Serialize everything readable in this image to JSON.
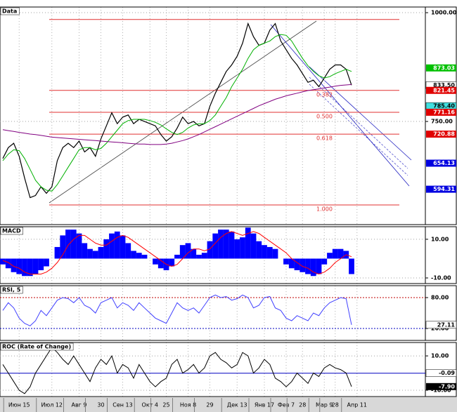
{
  "chart_data": [
    {
      "type": "line",
      "title": "Data",
      "ylim": [
        513,
        1013
      ],
      "yticks": [
        {
          "value": 1000,
          "label": "1000.00"
        },
        {
          "value": 750,
          "label": "750.00"
        }
      ],
      "series": [
        {
          "color": "#000000",
          "values": [
            665,
            690,
            700,
            670,
            620,
            575,
            580,
            600,
            585,
            600,
            660,
            690,
            700,
            690,
            705,
            680,
            690,
            670,
            710,
            740,
            770,
            745,
            760,
            765,
            745,
            755,
            750,
            745,
            740,
            720,
            705,
            715,
            735,
            760,
            745,
            750,
            740,
            745,
            785,
            815,
            840,
            865,
            880,
            900,
            930,
            975,
            945,
            925,
            930,
            960,
            975,
            935,
            915,
            895,
            880,
            860,
            840,
            845,
            830,
            850,
            870,
            880,
            880,
            870,
            833.5,
            null
          ]
        },
        {
          "color": "#00b000",
          "values": [
            660,
            675,
            685,
            683,
            665,
            640,
            615,
            600,
            592,
            590,
            605,
            625,
            645,
            665,
            685,
            690,
            690,
            685,
            688,
            700,
            715,
            730,
            745,
            752,
            755,
            755,
            755,
            752,
            748,
            742,
            733,
            725,
            720,
            725,
            735,
            742,
            745,
            745,
            752,
            765,
            785,
            805,
            830,
            850,
            870,
            895,
            915,
            925,
            930,
            935,
            945,
            950,
            948,
            935,
            915,
            895,
            878,
            865,
            855,
            850,
            853,
            860,
            865,
            870,
            865,
            null
          ]
        },
        {
          "color": "#800080",
          "values": [
            731,
            729,
            727,
            725,
            723,
            721,
            720,
            718,
            716,
            714,
            713,
            712,
            711,
            710,
            709,
            708,
            707,
            706,
            705,
            704,
            703,
            702,
            701,
            700,
            699,
            698,
            698,
            697,
            697,
            697,
            698,
            700,
            703,
            706,
            710,
            715,
            720,
            726,
            732,
            738,
            744,
            750,
            756,
            762,
            768,
            774,
            780,
            786,
            791,
            796,
            801,
            805,
            809,
            812,
            815,
            818,
            821,
            823,
            825,
            827,
            829,
            831,
            833,
            834,
            835,
            null
          ]
        }
      ],
      "fib_levels": [
        984.3,
        821.45,
        771.16,
        720.88,
        558.1
      ],
      "fib_labels": [
        null,
        "0.382",
        "0.500",
        "0.618",
        "1.000"
      ],
      "fib_color": "#e03030",
      "tags": [
        {
          "value": 873.03,
          "label": "873.03",
          "color": "#00c000"
        },
        {
          "value": 833.5,
          "label": "833.50",
          "color": "#ffffff"
        },
        {
          "value": 821.45,
          "label": "821.45",
          "color": "#e00000"
        },
        {
          "value": 785.4,
          "label": "785.40",
          "color": "#40e0e0"
        },
        {
          "value": 771.16,
          "label": "771.16",
          "color": "#e00000"
        },
        {
          "value": 720.88,
          "label": "720.88",
          "color": "#e00000"
        },
        {
          "value": 654.13,
          "label": "654.13",
          "color": "#0000e0"
        },
        {
          "value": 594.31,
          "label": "594.31",
          "color": "#0000e0"
        }
      ]
    },
    {
      "type": "bar",
      "title": "MACD",
      "ylim": [
        -12.9,
        16.5
      ],
      "yticks": [
        {
          "value": 10,
          "label": "10.00"
        },
        {
          "value": -10,
          "label": "-10.00"
        }
      ],
      "series": [
        {
          "type": "bar",
          "color": "#0000ff",
          "values": [
            -3,
            -5,
            -7,
            -8,
            -9,
            -9,
            -8,
            -6,
            -4,
            0,
            6,
            12,
            15,
            15,
            13,
            8,
            5,
            4,
            6,
            10,
            13,
            14,
            12,
            8,
            4,
            3,
            2,
            0,
            -3,
            -5,
            -6,
            -4,
            2,
            7,
            8,
            5,
            2,
            3,
            9,
            13,
            15,
            15,
            14,
            10,
            11,
            16,
            13,
            9,
            7,
            6,
            5,
            0,
            -3,
            -5,
            -6,
            -7,
            -8,
            -9,
            -8,
            -3,
            3,
            5,
            5,
            4,
            -8,
            null
          ]
        },
        {
          "type": "line",
          "color": "#ff0000",
          "values": [
            -1,
            -2,
            -4,
            -5,
            -7,
            -8,
            -8,
            -8,
            -7,
            -5,
            -2,
            2,
            7,
            10,
            12,
            12,
            10,
            8,
            7,
            7,
            9,
            11,
            12,
            11,
            9,
            7,
            5,
            3,
            1,
            -1,
            -3,
            -4,
            -3,
            0,
            3,
            5,
            5,
            4,
            5,
            8,
            11,
            13,
            14,
            13,
            12,
            13,
            14,
            13,
            11,
            9,
            7,
            5,
            3,
            0,
            -2,
            -4,
            -5,
            -7,
            -8,
            -7,
            -5,
            -2,
            0,
            2,
            1,
            null
          ]
        }
      ]
    },
    {
      "type": "line",
      "title": "RSI, 5",
      "ylim": [
        -3.2,
        103.2
      ],
      "yticks": [
        {
          "value": 80,
          "label": "80.00"
        },
        {
          "value": 20,
          "label": "20.00"
        }
      ],
      "reference_lines": [
        {
          "value": 80,
          "color": "#c00000"
        },
        {
          "value": 20,
          "color": "#0000c0"
        }
      ],
      "series": [
        {
          "color": "#4040ff",
          "values": [
            55,
            70,
            60,
            40,
            30,
            25,
            35,
            55,
            45,
            60,
            75,
            80,
            78,
            70,
            80,
            65,
            60,
            50,
            70,
            75,
            80,
            60,
            70,
            65,
            55,
            70,
            60,
            50,
            40,
            35,
            30,
            50,
            70,
            60,
            55,
            60,
            50,
            65,
            80,
            85,
            80,
            82,
            75,
            78,
            85,
            80,
            60,
            65,
            80,
            82,
            60,
            55,
            40,
            35,
            45,
            40,
            35,
            50,
            45,
            60,
            70,
            75,
            80,
            78,
            27.11,
            null
          ]
        }
      ],
      "tags": [
        {
          "value": 27.11,
          "label": "27.11",
          "color": "#ffffff"
        }
      ]
    },
    {
      "type": "line",
      "title": "ROC (Rate of Change)",
      "ylim": [
        -13.7,
        17.8
      ],
      "yticks": [
        {
          "value": 10,
          "label": "10.00"
        },
        {
          "value": -10,
          "label": "-10.00"
        }
      ],
      "reference_lines": [
        {
          "value": -0.09,
          "color": "#0000c0"
        }
      ],
      "series": [
        {
          "color": "#000000",
          "values": [
            5,
            0,
            -5,
            -10,
            -12,
            -8,
            0,
            5,
            10,
            15,
            12,
            8,
            5,
            10,
            5,
            0,
            -5,
            3,
            8,
            5,
            10,
            0,
            5,
            3,
            -3,
            5,
            0,
            -5,
            -8,
            -5,
            -3,
            5,
            8,
            0,
            2,
            5,
            0,
            3,
            10,
            12,
            8,
            6,
            3,
            5,
            12,
            10,
            0,
            3,
            8,
            5,
            -3,
            -5,
            -8,
            -5,
            0,
            -3,
            -6,
            0,
            -2,
            3,
            5,
            3,
            2,
            0,
            -7.9,
            null
          ]
        }
      ],
      "tags": [
        {
          "value": -0.09,
          "label": "-0.09",
          "color": "#ffffff"
        },
        {
          "value": -7.9,
          "label": "-7.90",
          "color": "#000000"
        }
      ],
      "categories": [
        null,
        null,
        null,
        "Июн 15",
        null,
        null,
        null,
        null,
        null,
        "Июл 12",
        null,
        null,
        null,
        null,
        "Авг 9",
        null,
        null,
        null,
        "30",
        null,
        null,
        null,
        "Сен 13",
        null,
        null,
        null,
        null,
        "Окт 4",
        null,
        null,
        "25",
        null,
        null,
        null,
        "Ноя 8",
        null,
        null,
        null,
        "29",
        null,
        null,
        null,
        null,
        "Дек 13",
        null,
        null,
        null,
        null,
        "Янв 17",
        null,
        null,
        null,
        "Фев 7",
        null,
        null,
        "28",
        null,
        null,
        null,
        "Мар 9",
        null,
        "28",
        null,
        null,
        null,
        "Апр 11"
      ]
    }
  ]
}
